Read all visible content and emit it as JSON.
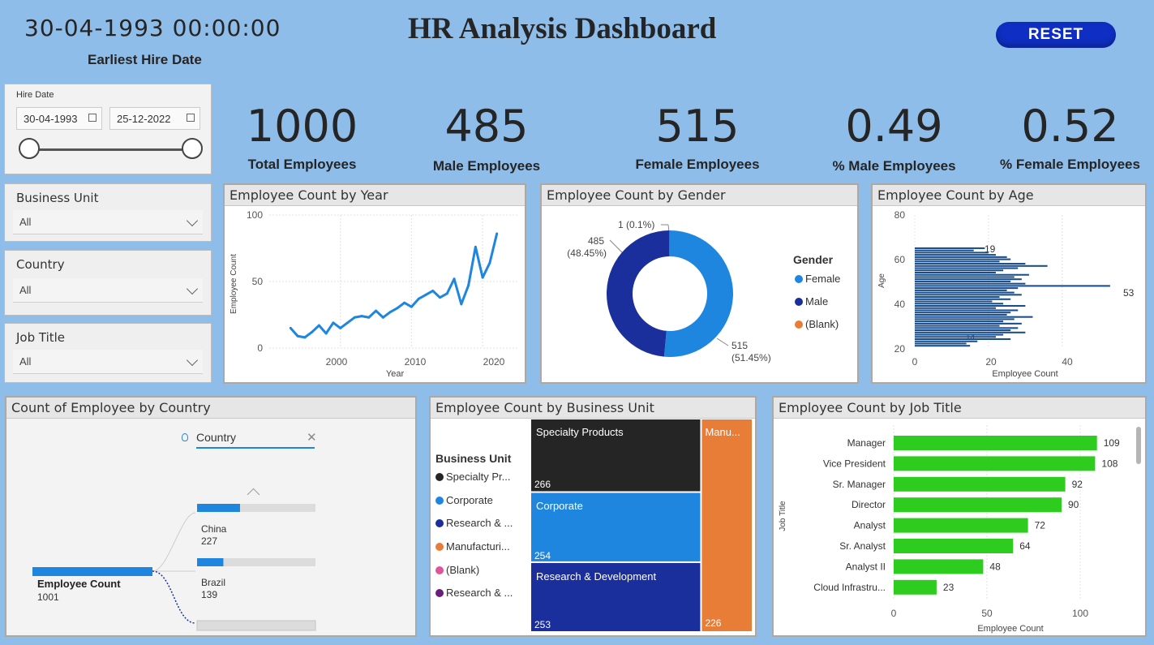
{
  "header": {
    "earliest_date": "30-04-1993 00:00:00",
    "earliest_label": "Earliest Hire Date",
    "title": "HR Analysis Dashboard",
    "reset_label": "RESET"
  },
  "hire_slicer": {
    "label": "Hire Date",
    "start": "30-04-1993",
    "end": "25-12-2022"
  },
  "slicers": [
    {
      "label": "Business Unit",
      "value": "All"
    },
    {
      "label": "Country",
      "value": "All"
    },
    {
      "label": "Job Title",
      "value": "All"
    }
  ],
  "kpis": [
    {
      "value": "1000",
      "label": "Total Employees"
    },
    {
      "value": "485",
      "label": "Male Employees"
    },
    {
      "value": "515",
      "label": "Female Employees"
    },
    {
      "value": "0.49",
      "label": "% Male Employees"
    },
    {
      "value": "0.52",
      "label": "% Female Employees"
    }
  ],
  "year_chart": {
    "title": "Employee Count by Year",
    "ylabel": "Employee Count",
    "xlabel": "Year",
    "yticks": [
      "0",
      "50",
      "100"
    ],
    "xticks": [
      "2000",
      "2010",
      "2020"
    ],
    "color": "#1f86e0"
  },
  "gender_chart": {
    "title": "Employee Count by Gender",
    "legend_title": "Gender",
    "legend": [
      {
        "label": "Female",
        "color": "#1f86e0"
      },
      {
        "label": "Male",
        "color": "#1a2e9c"
      },
      {
        "label": "(Blank)",
        "color": "#e87d38"
      }
    ],
    "label_blank": "1 (0.1%)",
    "label_male_count": "485",
    "label_male_pct": "(48.45%)",
    "label_female_count": "515",
    "label_female_pct": "(51.45%)"
  },
  "age_chart": {
    "title": "Employee Count by Age",
    "ylabel": "Age",
    "xlabel": "Employee Count",
    "yticks": [
      "80",
      "60",
      "40",
      "20"
    ],
    "xticks": [
      "0",
      "20",
      "40"
    ],
    "label_top": "19",
    "label_peak": "53",
    "label_low": "14",
    "color": "#1a4e8a"
  },
  "country_chart": {
    "title": "Count of Employee by Country",
    "field": "Country",
    "root_label": "Employee Count",
    "root_value": "1001",
    "nodes": [
      {
        "name": "China",
        "value": "227"
      },
      {
        "name": "Brazil",
        "value": "139"
      }
    ]
  },
  "bu_chart": {
    "title": "Employee Count by Business Unit",
    "legend_title": "Business Unit",
    "legend": [
      {
        "label": "Specialty Pr...",
        "color": "#252525"
      },
      {
        "label": "Corporate",
        "color": "#1f86e0"
      },
      {
        "label": "Research & ...",
        "color": "#1a2e9c"
      },
      {
        "label": "Manufacturi...",
        "color": "#e87d38"
      },
      {
        "label": "(Blank)",
        "color": "#e0559a"
      },
      {
        "label": "Research & ...",
        "color": "#6b1f7a"
      }
    ],
    "tiles": [
      {
        "name": "Specialty Products",
        "value": "266"
      },
      {
        "name": "Corporate",
        "value": "254"
      },
      {
        "name": "Research & Development",
        "value": "253"
      },
      {
        "name": "Manu...",
        "value": "226"
      }
    ]
  },
  "job_chart": {
    "title": "Employee Count by Job Title",
    "ylabel": "Job Title",
    "xlabel": "Employee Count",
    "xticks": [
      "0",
      "50",
      "100"
    ],
    "color": "#2ecc1f"
  },
  "chart_data": [
    {
      "type": "line",
      "title": "Employee Count by Year",
      "xlabel": "Year",
      "ylabel": "Employee Count",
      "ylim": [
        0,
        100
      ],
      "xlim": [
        1990,
        2025
      ],
      "x": [
        1993,
        1994,
        1995,
        1996,
        1997,
        1998,
        1999,
        2000,
        2001,
        2002,
        2003,
        2004,
        2005,
        2006,
        2007,
        2008,
        2009,
        2010,
        2011,
        2012,
        2013,
        2014,
        2015,
        2016,
        2017,
        2018,
        2019,
        2020,
        2021,
        2022
      ],
      "values": [
        15,
        9,
        8,
        12,
        17,
        11,
        19,
        15,
        19,
        23,
        24,
        23,
        28,
        23,
        27,
        30,
        34,
        31,
        37,
        40,
        43,
        38,
        41,
        52,
        33,
        47,
        76,
        53,
        64,
        86
      ]
    },
    {
      "type": "pie",
      "title": "Employee Count by Gender",
      "categories": [
        "Female",
        "Male",
        "(Blank)"
      ],
      "values": [
        515,
        485,
        1
      ]
    },
    {
      "type": "bar",
      "orientation": "horizontal",
      "title": "Employee Count by Age",
      "xlabel": "Employee Count",
      "ylabel": "Age",
      "ylim": [
        20,
        80
      ],
      "xlim": [
        0,
        55
      ],
      "x": [
        65,
        64,
        63,
        62,
        61,
        60,
        59,
        58,
        57,
        56,
        55,
        54,
        53,
        52,
        51,
        50,
        49,
        48,
        47,
        46,
        45,
        44,
        43,
        42,
        41,
        40,
        39,
        38,
        37,
        36,
        35,
        34,
        33,
        32,
        31,
        30,
        29,
        28,
        27,
        26,
        25,
        24,
        23,
        22,
        21
      ],
      "values": [
        19,
        16,
        20,
        22,
        25,
        26,
        23,
        30,
        36,
        28,
        24,
        22,
        31,
        27,
        29,
        26,
        30,
        53,
        28,
        25,
        27,
        29,
        23,
        26,
        21,
        24,
        30,
        22,
        28,
        26,
        25,
        32,
        27,
        24,
        29,
        23,
        28,
        26,
        30,
        24,
        22,
        26,
        17,
        14,
        15
      ]
    },
    {
      "type": "bar",
      "title": "Count of Employee by Country",
      "categories": [
        "Employee Count",
        "China",
        "Brazil"
      ],
      "values": [
        1001,
        227,
        139
      ]
    },
    {
      "type": "bar",
      "title": "Employee Count by Business Unit",
      "categories": [
        "Specialty Products",
        "Corporate",
        "Research & Development",
        "Manu..."
      ],
      "values": [
        266,
        254,
        253,
        226
      ]
    },
    {
      "type": "bar",
      "orientation": "horizontal",
      "title": "Employee Count by Job Title",
      "xlabel": "Employee Count",
      "ylabel": "Job Title",
      "xlim": [
        0,
        110
      ],
      "categories": [
        "Manager",
        "Vice President",
        "Sr. Manager",
        "Director",
        "Analyst",
        "Sr. Analyst",
        "Analyst II",
        "Cloud Infrastru..."
      ],
      "values": [
        109,
        108,
        92,
        90,
        72,
        64,
        48,
        23
      ]
    }
  ]
}
